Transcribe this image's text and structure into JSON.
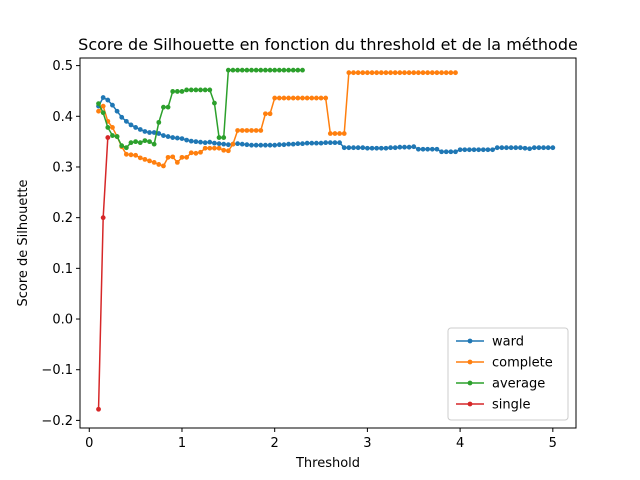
{
  "chart_data": {
    "type": "line",
    "title": "Score de Silhouette en fonction du threshold et de la méthode",
    "xlabel": "Threshold",
    "ylabel": "Score de Silhouette",
    "xlim": [
      -0.1,
      5.25
    ],
    "ylim": [
      -0.215,
      0.515
    ],
    "xticks": [
      0,
      1,
      2,
      3,
      4,
      5
    ],
    "yticks": [
      -0.2,
      -0.1,
      0.0,
      0.1,
      0.2,
      0.3,
      0.4,
      0.5
    ],
    "ytick_labels": [
      "−0.2",
      "−0.1",
      "0.0",
      "0.1",
      "0.2",
      "0.3",
      "0.4",
      "0.5"
    ],
    "grid": false,
    "legend_position": "lower-right",
    "series": [
      {
        "name": "ward",
        "color": "#1f77b4",
        "x": [
          0.1,
          0.15,
          0.2,
          0.25,
          0.3,
          0.35,
          0.4,
          0.45,
          0.5,
          0.55,
          0.6,
          0.65,
          0.7,
          0.75,
          0.8,
          0.85,
          0.9,
          0.95,
          1.0,
          1.05,
          1.1,
          1.15,
          1.2,
          1.25,
          1.3,
          1.35,
          1.4,
          1.45,
          1.5,
          1.55,
          1.6,
          1.65,
          1.7,
          1.75,
          1.8,
          1.85,
          1.9,
          1.95,
          2.0,
          2.05,
          2.1,
          2.15,
          2.2,
          2.25,
          2.3,
          2.35,
          2.4,
          2.45,
          2.5,
          2.55,
          2.6,
          2.65,
          2.7,
          2.75,
          2.8,
          2.85,
          2.9,
          2.95,
          3.0,
          3.05,
          3.1,
          3.15,
          3.2,
          3.25,
          3.3,
          3.35,
          3.4,
          3.45,
          3.5,
          3.55,
          3.6,
          3.65,
          3.7,
          3.75,
          3.8,
          3.85,
          3.9,
          3.95,
          4.0,
          4.05,
          4.1,
          4.15,
          4.2,
          4.25,
          4.3,
          4.35,
          4.4,
          4.45,
          4.5,
          4.55,
          4.6,
          4.65,
          4.7,
          4.75,
          4.8,
          4.85,
          4.9,
          4.95,
          5.0
        ],
        "y": [
          0.42,
          0.437,
          0.432,
          0.422,
          0.41,
          0.398,
          0.39,
          0.383,
          0.378,
          0.374,
          0.37,
          0.368,
          0.368,
          0.366,
          0.362,
          0.36,
          0.358,
          0.357,
          0.356,
          0.353,
          0.351,
          0.35,
          0.349,
          0.348,
          0.349,
          0.347,
          0.346,
          0.345,
          0.344,
          0.345,
          0.346,
          0.345,
          0.344,
          0.343,
          0.343,
          0.343,
          0.343,
          0.343,
          0.343,
          0.344,
          0.344,
          0.345,
          0.345,
          0.346,
          0.346,
          0.347,
          0.347,
          0.347,
          0.347,
          0.348,
          0.348,
          0.348,
          0.348,
          0.338,
          0.338,
          0.338,
          0.338,
          0.338,
          0.337,
          0.337,
          0.337,
          0.337,
          0.337,
          0.338,
          0.338,
          0.339,
          0.339,
          0.339,
          0.34,
          0.335,
          0.335,
          0.335,
          0.335,
          0.335,
          0.33,
          0.33,
          0.33,
          0.33,
          0.334,
          0.334,
          0.334,
          0.334,
          0.334,
          0.334,
          0.334,
          0.334,
          0.338,
          0.338,
          0.338,
          0.338,
          0.338,
          0.338,
          0.337,
          0.336,
          0.338,
          0.338,
          0.338,
          0.338,
          0.338
        ]
      },
      {
        "name": "complete",
        "color": "#ff7f0e",
        "x": [
          0.1,
          0.15,
          0.2,
          0.25,
          0.3,
          0.35,
          0.4,
          0.45,
          0.5,
          0.55,
          0.6,
          0.65,
          0.7,
          0.75,
          0.8,
          0.85,
          0.9,
          0.95,
          1.0,
          1.05,
          1.1,
          1.15,
          1.2,
          1.25,
          1.3,
          1.35,
          1.4,
          1.45,
          1.5,
          1.55,
          1.6,
          1.65,
          1.7,
          1.75,
          1.8,
          1.85,
          1.9,
          1.95,
          2.0,
          2.05,
          2.1,
          2.15,
          2.2,
          2.25,
          2.3,
          2.35,
          2.4,
          2.45,
          2.5,
          2.55,
          2.6,
          2.65,
          2.7,
          2.75,
          2.8,
          2.85,
          2.9,
          2.95,
          3.0,
          3.05,
          3.1,
          3.15,
          3.2,
          3.25,
          3.3,
          3.35,
          3.4,
          3.45,
          3.5,
          3.55,
          3.6,
          3.65,
          3.7,
          3.75,
          3.8,
          3.85,
          3.9,
          3.95
        ],
        "y": [
          0.41,
          0.42,
          0.39,
          0.378,
          0.36,
          0.34,
          0.325,
          0.324,
          0.323,
          0.318,
          0.315,
          0.312,
          0.309,
          0.305,
          0.302,
          0.319,
          0.32,
          0.309,
          0.319,
          0.319,
          0.328,
          0.327,
          0.329,
          0.337,
          0.337,
          0.337,
          0.337,
          0.333,
          0.332,
          0.345,
          0.372,
          0.372,
          0.372,
          0.372,
          0.372,
          0.372,
          0.405,
          0.405,
          0.436,
          0.436,
          0.436,
          0.436,
          0.436,
          0.436,
          0.436,
          0.436,
          0.436,
          0.436,
          0.436,
          0.436,
          0.366,
          0.366,
          0.366,
          0.366,
          0.486,
          0.486,
          0.486,
          0.486,
          0.486,
          0.486,
          0.486,
          0.486,
          0.486,
          0.486,
          0.486,
          0.486,
          0.486,
          0.486,
          0.486,
          0.486,
          0.486,
          0.486,
          0.486,
          0.486,
          0.486,
          0.486,
          0.486,
          0.486
        ]
      },
      {
        "name": "average",
        "color": "#2ca02c",
        "x": [
          0.1,
          0.15,
          0.2,
          0.25,
          0.3,
          0.35,
          0.4,
          0.45,
          0.5,
          0.55,
          0.6,
          0.65,
          0.7,
          0.75,
          0.8,
          0.85,
          0.9,
          0.95,
          1.0,
          1.05,
          1.1,
          1.15,
          1.2,
          1.25,
          1.3,
          1.35,
          1.4,
          1.45,
          1.5,
          1.55,
          1.6,
          1.65,
          1.7,
          1.75,
          1.8,
          1.85,
          1.9,
          1.95,
          2.0,
          2.05,
          2.1,
          2.15,
          2.2,
          2.25,
          2.3
        ],
        "y": [
          0.425,
          0.407,
          0.378,
          0.362,
          0.36,
          0.342,
          0.338,
          0.348,
          0.35,
          0.348,
          0.352,
          0.35,
          0.345,
          0.388,
          0.418,
          0.418,
          0.449,
          0.449,
          0.449,
          0.452,
          0.452,
          0.452,
          0.452,
          0.452,
          0.452,
          0.426,
          0.358,
          0.358,
          0.491,
          0.491,
          0.491,
          0.491,
          0.491,
          0.491,
          0.491,
          0.491,
          0.491,
          0.491,
          0.491,
          0.491,
          0.491,
          0.491,
          0.491,
          0.491,
          0.491
        ]
      },
      {
        "name": "single",
        "color": "#d62728",
        "x": [
          0.1,
          0.15,
          0.2
        ],
        "y": [
          -0.178,
          0.2,
          0.358
        ]
      }
    ]
  }
}
